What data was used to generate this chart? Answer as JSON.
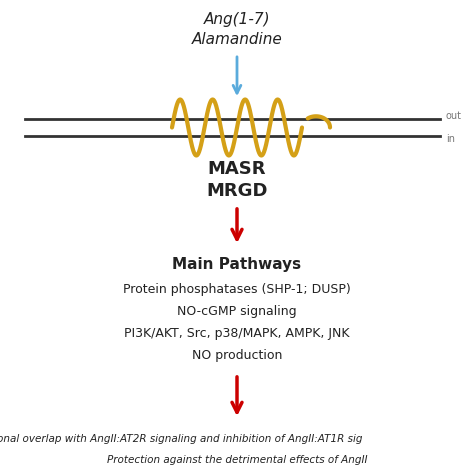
{
  "bg_color": "#ffffff",
  "title_line1": "Ang(1-7)",
  "title_line2": "Alamandine",
  "receptor_label1": "MASR",
  "receptor_label2": "MRGD",
  "main_pathways_title": "Main Pathways",
  "pathway_lines": [
    "Protein phosphatases (SHP-1; DUSP)",
    "NO-cGMP signaling",
    "PI3K/AKT, Src, p38/MAPK, AMPK, JNK",
    "NO production"
  ],
  "bottom_italic_line1": "tional overlap with AngII:AT2R signaling and inhibition of AngII:AT1R sig",
  "bottom_italic_line2": "Protection against the detrimental effects of AngII",
  "out_label": "out",
  "in_label": "in",
  "arrow_blue_color": "#5aabdc",
  "arrow_red_color": "#cc0000",
  "helix_color": "#d4a017",
  "text_color": "#222222",
  "label_color": "#777777"
}
